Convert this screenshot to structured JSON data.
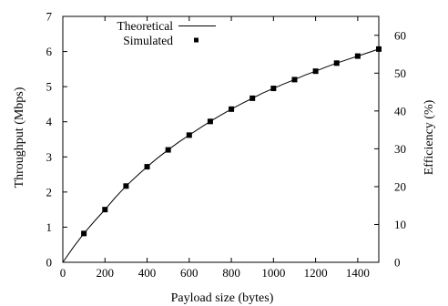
{
  "chart_data": {
    "type": "line",
    "xlabel": "Payload size (bytes)",
    "ylabel": "Throughput (Mbps)",
    "y2label": "Efficiency (%)",
    "xlim": [
      0,
      1500
    ],
    "ylim": [
      0,
      7
    ],
    "y2lim": [
      0,
      65
    ],
    "xticks": [
      0,
      200,
      400,
      600,
      800,
      1000,
      1200,
      1400
    ],
    "yticks": [
      0,
      1,
      2,
      3,
      4,
      5,
      6,
      7
    ],
    "y2ticks": [
      0,
      10,
      20,
      30,
      40,
      50,
      60
    ],
    "grid": false,
    "legend_position": "top-left",
    "series": [
      {
        "name": "Theoretical",
        "style": "line",
        "color": "#000000",
        "x": [
          0,
          50,
          100,
          150,
          200,
          250,
          300,
          350,
          400,
          450,
          500,
          550,
          600,
          650,
          700,
          750,
          800,
          850,
          900,
          950,
          1000,
          1050,
          1100,
          1150,
          1200,
          1250,
          1300,
          1350,
          1400,
          1450,
          1500
        ],
        "y": [
          0,
          0.43,
          0.82,
          1.17,
          1.5,
          1.85,
          2.17,
          2.45,
          2.72,
          2.97,
          3.2,
          3.42,
          3.62,
          3.82,
          4.01,
          4.19,
          4.36,
          4.52,
          4.67,
          4.82,
          4.95,
          5.08,
          5.2,
          5.33,
          5.44,
          5.56,
          5.67,
          5.77,
          5.87,
          5.97,
          6.07
        ]
      },
      {
        "name": "Simulated",
        "style": "square-marker",
        "color": "#000000",
        "x": [
          100,
          200,
          300,
          400,
          500,
          600,
          700,
          800,
          900,
          1000,
          1100,
          1200,
          1300,
          1400,
          1500
        ],
        "y": [
          0.82,
          1.5,
          2.17,
          2.72,
          3.2,
          3.62,
          4.01,
          4.36,
          4.67,
          4.95,
          5.2,
          5.44,
          5.67,
          5.87,
          6.07
        ]
      }
    ]
  }
}
